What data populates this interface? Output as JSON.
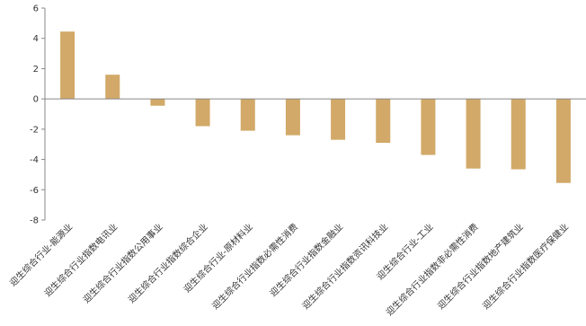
{
  "chart_data": {
    "type": "bar",
    "title": "",
    "xlabel": "",
    "ylabel": "",
    "ylim": [
      -8,
      6
    ],
    "yticks": [
      6,
      4,
      2,
      0,
      -2,
      -4,
      -6,
      -8
    ],
    "grid": false,
    "legend": "none",
    "bar_color": "#D2A968",
    "categories": [
      "迎生综合行业-能源业",
      "迎生综合行业指数电讯业",
      "迎生综合行业指数公用事业",
      "迎生综合行业指数综合企业",
      "迎生综合行业-原材料业",
      "迎生综合行业指数必需性消费",
      "迎生综合行业指数金融业",
      "迎生综合行业指数资讯科技业",
      "迎生综合行业-工业",
      "迎生综合行业指数非必需性消费",
      "迎生综合行业指数地产建筑业",
      "迎生综合行业指数医疗保健业"
    ],
    "values": [
      4.45,
      1.6,
      -0.45,
      -1.8,
      -2.1,
      -2.4,
      -2.7,
      -2.9,
      -3.7,
      -4.6,
      -4.65,
      -5.55
    ]
  }
}
